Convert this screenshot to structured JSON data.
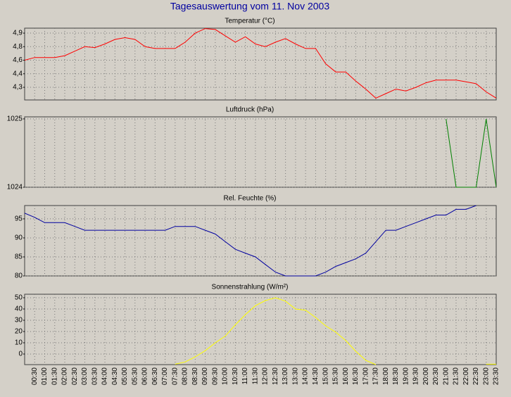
{
  "title": "Tagesauswertung vom 11. Nov 2003",
  "categories": [
    null,
    "00:30",
    "01:00",
    "01:30",
    "02:00",
    "02:30",
    "03:00",
    "03:30",
    "04:00",
    "04:30",
    "05:00",
    "05:30",
    "06:00",
    "06:30",
    "07:00",
    "07:30",
    "08:00",
    "08:30",
    "09:00",
    "09:30",
    "10:00",
    "10:30",
    "11:00",
    "11:30",
    "12:00",
    "12:30",
    "13:00",
    "13:30",
    "14:00",
    "14:30",
    "15:00",
    "15:30",
    "16:00",
    "16:30",
    "17:00",
    "17:30",
    "18:00",
    "18:30",
    "19:00",
    "19:30",
    "20:00",
    "20:30",
    "21:00",
    "21:30",
    "22:00",
    "22:30",
    "23:00",
    "23:30"
  ],
  "chart_data": [
    {
      "type": "line",
      "title": "Temperatur (°C)",
      "color": "#ff0000",
      "grid": true,
      "ylim": [
        4.16,
        4.955
      ],
      "yticks": [
        {
          "value": 4.9,
          "label": "4,9"
        },
        {
          "value": 4.75,
          "label": "4,8"
        },
        {
          "value": 4.6,
          "label": "4,6"
        },
        {
          "value": 4.45,
          "label": "4,4"
        },
        {
          "value": 4.3,
          "label": "4,3"
        }
      ],
      "values": [
        4.6,
        4.63,
        4.63,
        4.63,
        4.65,
        4.7,
        4.75,
        4.74,
        4.78,
        4.83,
        4.85,
        4.83,
        4.75,
        4.73,
        4.73,
        4.73,
        4.8,
        4.9,
        4.95,
        4.94,
        4.87,
        4.8,
        4.86,
        4.78,
        4.75,
        4.8,
        4.84,
        4.78,
        4.73,
        4.73,
        4.56,
        4.47,
        4.47,
        4.37,
        4.28,
        4.18,
        4.23,
        4.28,
        4.26,
        4.3,
        4.35,
        4.38,
        4.38,
        4.38,
        4.36,
        4.34,
        4.25,
        4.18
      ]
    },
    {
      "type": "line",
      "title": "Luftdruck (hPa)",
      "color": "#008000",
      "grid": true,
      "ylim": [
        1024,
        1025.03
      ],
      "yticks": [
        1025,
        1024
      ],
      "values": [
        null,
        null,
        null,
        null,
        null,
        null,
        null,
        null,
        null,
        null,
        null,
        null,
        null,
        null,
        null,
        null,
        null,
        null,
        null,
        null,
        null,
        null,
        null,
        null,
        null,
        null,
        null,
        null,
        null,
        null,
        null,
        null,
        null,
        null,
        null,
        null,
        null,
        null,
        null,
        null,
        null,
        null,
        1025,
        1024,
        1024,
        1024,
        1025,
        1024
      ]
    },
    {
      "type": "line",
      "title": "Rel. Feuchte (%)",
      "color": "#0000a0",
      "grid": true,
      "ylim": [
        80,
        98.5
      ],
      "yticks": [
        95,
        90,
        85,
        80
      ],
      "values": [
        96.5,
        95.4,
        94,
        94,
        94,
        93,
        92,
        92,
        92,
        92,
        92,
        92,
        92,
        92,
        92,
        93,
        93,
        93,
        92,
        91,
        89,
        87,
        86,
        85,
        83,
        81,
        80,
        80,
        80,
        80,
        81,
        82.5,
        83.5,
        84.5,
        86,
        89,
        92,
        92,
        93,
        94,
        95,
        96,
        96,
        97.5,
        97.5,
        98.5,
        null,
        null
      ]
    },
    {
      "type": "line",
      "title": "Sonnenstrahlung (W/m²)",
      "color": "#ffff00",
      "grid": true,
      "ylim": [
        -9.4,
        53.1
      ],
      "yticks": [
        50,
        40,
        30,
        20,
        10,
        0
      ],
      "values": [
        null,
        null,
        null,
        null,
        null,
        null,
        null,
        null,
        null,
        null,
        null,
        null,
        null,
        null,
        null,
        -9,
        -7,
        -2.5,
        3,
        10,
        16,
        26,
        35,
        43,
        47.5,
        50,
        47,
        40,
        39,
        32.5,
        25,
        19.5,
        12,
        2.5,
        -5.6,
        -9.4,
        null,
        null,
        null,
        null,
        null,
        null,
        null,
        null,
        null,
        null,
        -9,
        -9
      ]
    }
  ]
}
